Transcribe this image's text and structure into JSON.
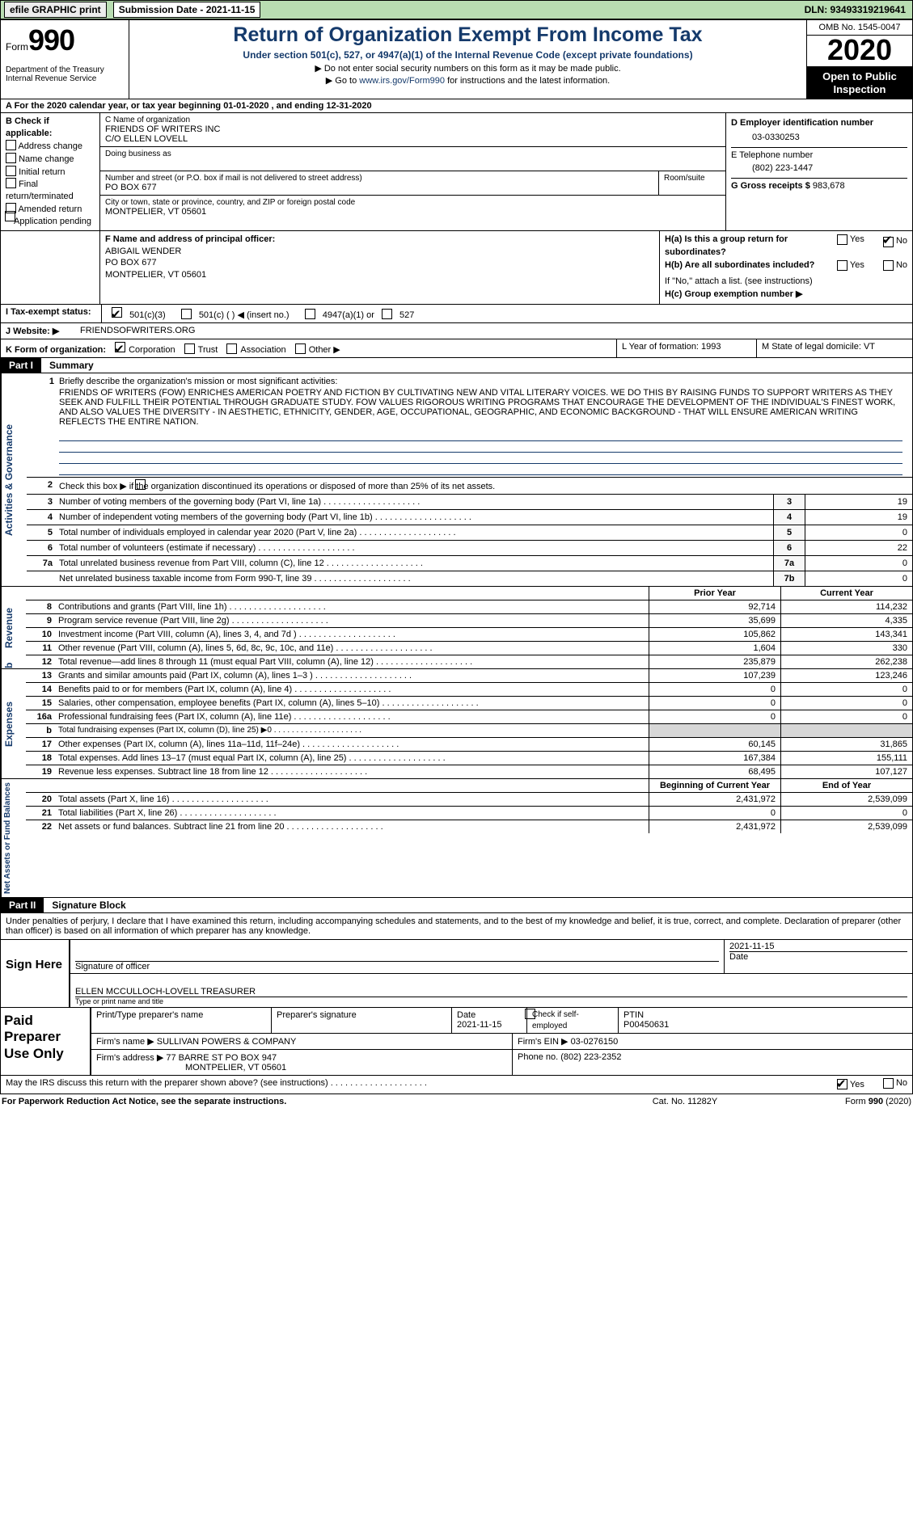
{
  "topbar": {
    "efile": "efile GRAPHIC print",
    "submission": "Submission Date - 2021-11-15",
    "dln": "DLN: 93493319219641"
  },
  "header": {
    "form": "990",
    "form_prefix": "Form",
    "title": "Return of Organization Exempt From Income Tax",
    "sub1": "Under section 501(c), 527, or 4947(a)(1) of the Internal Revenue Code (except private foundations)",
    "sub2": "▶ Do not enter social security numbers on this form as it may be made public.",
    "sub3_pre": "▶ Go to ",
    "sub3_link": "www.irs.gov/Form990",
    "sub3_post": " for instructions and the latest information.",
    "dept": "Department of the Treasury\nInternal Revenue Service",
    "omb": "OMB No. 1545-0047",
    "year": "2020",
    "open1": "Open to Public",
    "open2": "Inspection"
  },
  "line_a": "A  For the 2020 calendar year, or tax year beginning 01-01-2020   , and ending 12-31-2020",
  "col_b": {
    "label": "B Check if applicable:",
    "items": [
      "Address change",
      "Name change",
      "Initial return",
      "Final return/terminated",
      "Amended return",
      "Application pending"
    ]
  },
  "col_c": {
    "name_label": "C Name of organization",
    "name1": "FRIENDS OF WRITERS INC",
    "name2": "C/O ELLEN LOVELL",
    "dba_label": "Doing business as",
    "addr_label": "Number and street (or P.O. box if mail is not delivered to street address)",
    "addr": "PO BOX 677",
    "room_label": "Room/suite",
    "city_label": "City or town, state or province, country, and ZIP or foreign postal code",
    "city": "MONTPELIER, VT  05601"
  },
  "col_d": {
    "ein_label": "D Employer identification number",
    "ein": "03-0330253",
    "tel_label": "E Telephone number",
    "tel": "(802) 223-1447",
    "gross_label": "G Gross receipts $",
    "gross": "983,678"
  },
  "col_f": {
    "label": "F  Name and address of principal officer:",
    "name": "ABIGAIL WENDER",
    "addr1": "PO BOX 677",
    "addr2": "MONTPELIER, VT  05601"
  },
  "col_h": {
    "ha": "H(a)  Is this a group return for subordinates?",
    "hb": "H(b)  Are all subordinates included?",
    "note": "If \"No,\" attach a list. (see instructions)",
    "hc": "H(c)  Group exemption number ▶"
  },
  "tax_status": {
    "label": "I    Tax-exempt status:",
    "o1": "501(c)(3)",
    "o2": "501(c) (  ) ◀ (insert no.)",
    "o3": "4947(a)(1) or",
    "o4": "527"
  },
  "website": {
    "label": "J   Website: ▶",
    "value": "FRIENDSOFWRITERS.ORG"
  },
  "row_k": {
    "label": "K Form of organization:",
    "opts": [
      "Corporation",
      "Trust",
      "Association",
      "Other ▶"
    ],
    "l": "L Year of formation: 1993",
    "m": "M State of legal domicile: VT"
  },
  "parts": {
    "p1": "Part I",
    "p1t": "Summary",
    "p2": "Part II",
    "p2t": "Signature Block"
  },
  "vertical_labels": {
    "ag": "Activities & Governance",
    "rev": "Revenue",
    "exp": "Expenses",
    "na": "Net Assets or Fund Balances"
  },
  "summary": {
    "q1": "Briefly describe the organization's mission or most significant activities:",
    "mission": "FRIENDS OF WRITERS (FOW) ENRICHES AMERICAN POETRY AND FICTION BY CULTIVATING NEW AND VITAL LITERARY VOICES. WE DO THIS BY RAISING FUNDS TO SUPPORT WRITERS AS THEY SEEK AND FULFILL THEIR POTENTIAL THROUGH GRADUATE STUDY. FOW VALUES RIGOROUS WRITING PROGRAMS THAT ENCOURAGE THE DEVELOPMENT OF THE INDIVIDUAL'S FINEST WORK, AND ALSO VALUES THE DIVERSITY - IN AESTHETIC, ETHNICITY, GENDER, AGE, OCCUPATIONAL, GEOGRAPHIC, AND ECONOMIC BACKGROUND - THAT WILL ENSURE AMERICAN WRITING REFLECTS THE ENTIRE NATION.",
    "q2": "Check this box ▶        if the organization discontinued its operations or disposed of more than 25% of its net assets.",
    "rows": [
      {
        "n": "3",
        "t": "Number of voting members of the governing body (Part VI, line 1a)",
        "c": "3",
        "v": "19"
      },
      {
        "n": "4",
        "t": "Number of independent voting members of the governing body (Part VI, line 1b)",
        "c": "4",
        "v": "19"
      },
      {
        "n": "5",
        "t": "Total number of individuals employed in calendar year 2020 (Part V, line 2a)",
        "c": "5",
        "v": "0"
      },
      {
        "n": "6",
        "t": "Total number of volunteers (estimate if necessary)",
        "c": "6",
        "v": "22"
      },
      {
        "n": "7a",
        "t": "Total unrelated business revenue from Part VIII, column (C), line 12",
        "c": "7a",
        "v": "0"
      },
      {
        "n": "",
        "t": "Net unrelated business taxable income from Form 990-T, line 39",
        "c": "7b",
        "v": "0"
      }
    ],
    "head_b": "b",
    "head_prior": "Prior Year",
    "head_current": "Current Year"
  },
  "revenue_rows": [
    {
      "n": "8",
      "t": "Contributions and grants (Part VIII, line 1h)",
      "p": "92,714",
      "c": "114,232"
    },
    {
      "n": "9",
      "t": "Program service revenue (Part VIII, line 2g)",
      "p": "35,699",
      "c": "4,335"
    },
    {
      "n": "10",
      "t": "Investment income (Part VIII, column (A), lines 3, 4, and 7d )",
      "p": "105,862",
      "c": "143,341"
    },
    {
      "n": "11",
      "t": "Other revenue (Part VIII, column (A), lines 5, 6d, 8c, 9c, 10c, and 11e)",
      "p": "1,604",
      "c": "330"
    },
    {
      "n": "12",
      "t": "Total revenue—add lines 8 through 11 (must equal Part VIII, column (A), line 12)",
      "p": "235,879",
      "c": "262,238"
    }
  ],
  "expense_rows": [
    {
      "n": "13",
      "t": "Grants and similar amounts paid (Part IX, column (A), lines 1–3 )",
      "p": "107,239",
      "c": "123,246"
    },
    {
      "n": "14",
      "t": "Benefits paid to or for members (Part IX, column (A), line 4)",
      "p": "0",
      "c": "0"
    },
    {
      "n": "15",
      "t": "Salaries, other compensation, employee benefits (Part IX, column (A), lines 5–10)",
      "p": "0",
      "c": "0"
    },
    {
      "n": "16a",
      "t": "Professional fundraising fees (Part IX, column (A), line 11e)",
      "p": "0",
      "c": "0"
    },
    {
      "n": "b",
      "t": "Total fundraising expenses (Part IX, column (D), line 25) ▶0",
      "p": "",
      "c": "",
      "shaded": true
    },
    {
      "n": "17",
      "t": "Other expenses (Part IX, column (A), lines 11a–11d, 11f–24e)",
      "p": "60,145",
      "c": "31,865"
    },
    {
      "n": "18",
      "t": "Total expenses. Add lines 13–17 (must equal Part IX, column (A), line 25)",
      "p": "167,384",
      "c": "155,111"
    },
    {
      "n": "19",
      "t": "Revenue less expenses. Subtract line 18 from line 12",
      "p": "68,495",
      "c": "107,127"
    }
  ],
  "net_head": {
    "p": "Beginning of Current Year",
    "c": "End of Year"
  },
  "net_rows": [
    {
      "n": "20",
      "t": "Total assets (Part X, line 16)",
      "p": "2,431,972",
      "c": "2,539,099"
    },
    {
      "n": "21",
      "t": "Total liabilities (Part X, line 26)",
      "p": "0",
      "c": "0"
    },
    {
      "n": "22",
      "t": "Net assets or fund balances. Subtract line 21 from line 20",
      "p": "2,431,972",
      "c": "2,539,099"
    }
  ],
  "signature": {
    "penalties": "Under penalties of perjury, I declare that I have examined this return, including accompanying schedules and statements, and to the best of my knowledge and belief, it is true, correct, and complete. Declaration of preparer (other than officer) is based on all information of which preparer has any knowledge.",
    "sign_here": "Sign Here",
    "sig_label": "Signature of officer",
    "date": "2021-11-15",
    "date_label": "Date",
    "name": "ELLEN MCCULLOCH-LOVELL  TREASURER",
    "name_label": "Type or print name and title"
  },
  "paid": {
    "label": "Paid Preparer Use Only",
    "h1": "Print/Type preparer's name",
    "h2": "Preparer's signature",
    "h3": "Date",
    "h3v": "2021-11-15",
    "h4": "Check        if self-employed",
    "h5": "PTIN",
    "h5v": "P00450631",
    "firm_label": "Firm's name    ▶",
    "firm": "SULLIVAN POWERS & COMPANY",
    "ein_label": "Firm's EIN ▶",
    "ein": "03-0276150",
    "addr_label": "Firm's address ▶",
    "addr1": "77 BARRE ST PO BOX 947",
    "addr2": "MONTPELIER, VT  05601",
    "phone_label": "Phone no.",
    "phone": "(802) 223-2352"
  },
  "may_irs": "May the IRS discuss this return with the preparer shown above? (see instructions)",
  "footer": {
    "l": "For Paperwork Reduction Act Notice, see the separate instructions.",
    "m": "Cat. No. 11282Y",
    "r": "Form 990 (2020)"
  }
}
